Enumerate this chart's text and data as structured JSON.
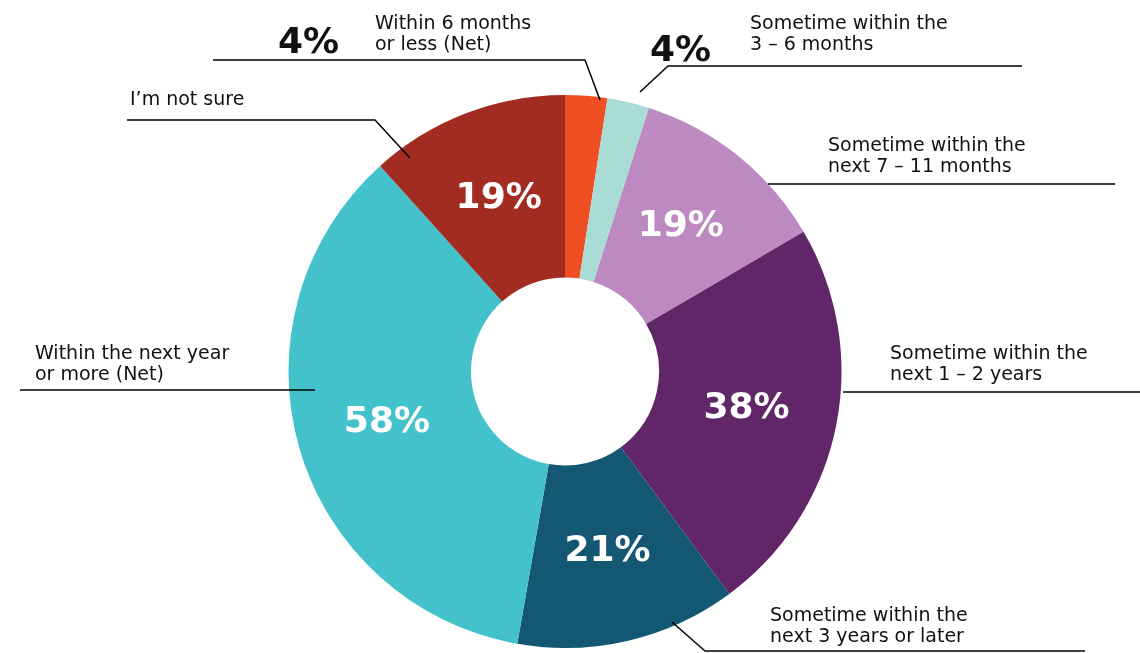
{
  "chart_data": {
    "type": "donut",
    "categories": [
      "Within 6 months or less (Net)",
      "Sometime within the 3 – 6 months",
      "Sometime within the next 7 – 11 months",
      "Sometime within the next 1 – 2 years",
      "Sometime within the next 3 years or later",
      "Within the next year or more (Net)",
      "I’m not sure"
    ],
    "values": [
      4,
      4,
      19,
      38,
      21,
      58,
      19
    ],
    "value_labels": [
      "4%",
      "4%",
      "19%",
      "38%",
      "21%",
      "58%",
      "19%"
    ],
    "colors": [
      "#f04e23",
      "#a8dcd4",
      "#bc8ac0",
      "#612668",
      "#135773",
      "#44c2cc",
      "#a32c22"
    ],
    "legend": false
  }
}
